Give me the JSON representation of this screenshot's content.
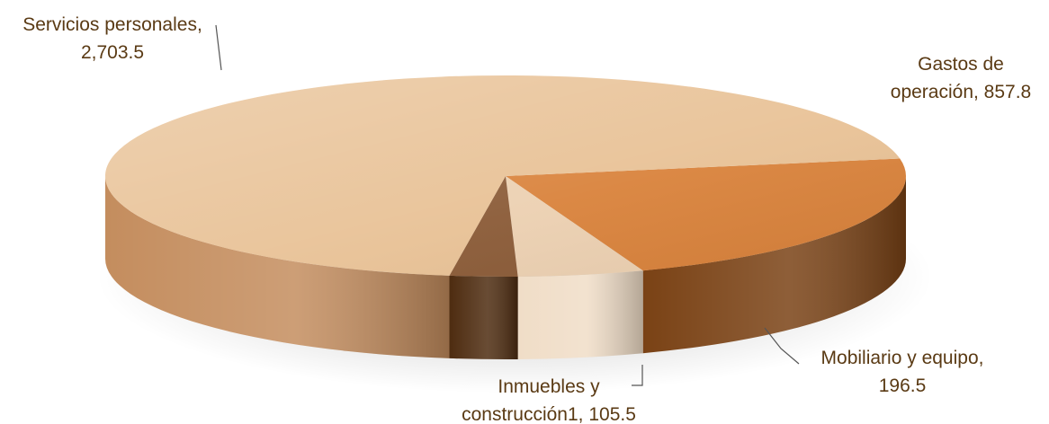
{
  "chart_data": {
    "type": "pie",
    "title": "",
    "slices": [
      {
        "label_lines": [
          "Gastos de",
          "operación, 857.8"
        ],
        "category": "Gastos de operación",
        "value": 857.8,
        "top_color": "#d9823b",
        "side_color": "#7a4215"
      },
      {
        "label_lines": [
          "Mobiliario y equipo,",
          "196.5"
        ],
        "category": "Mobiliario y equipo",
        "value": 196.5,
        "top_color": "#ecd0b1",
        "side_color": "#f0ddc7"
      },
      {
        "label_lines": [
          "Inmuebles y",
          "construcción1, 105.5"
        ],
        "category": "Inmuebles y construcción1",
        "value": 105.5,
        "top_color": "#8a5a36",
        "side_color": "#4e2c10"
      },
      {
        "label_lines": [
          "Servicios personales,",
          "2,703.5"
        ],
        "category": "Servicios personales",
        "value": 2703.5,
        "top_color": "#e8c195",
        "side_color": "#c48d5e"
      }
    ],
    "style": "3d-pie",
    "legend": "none"
  }
}
